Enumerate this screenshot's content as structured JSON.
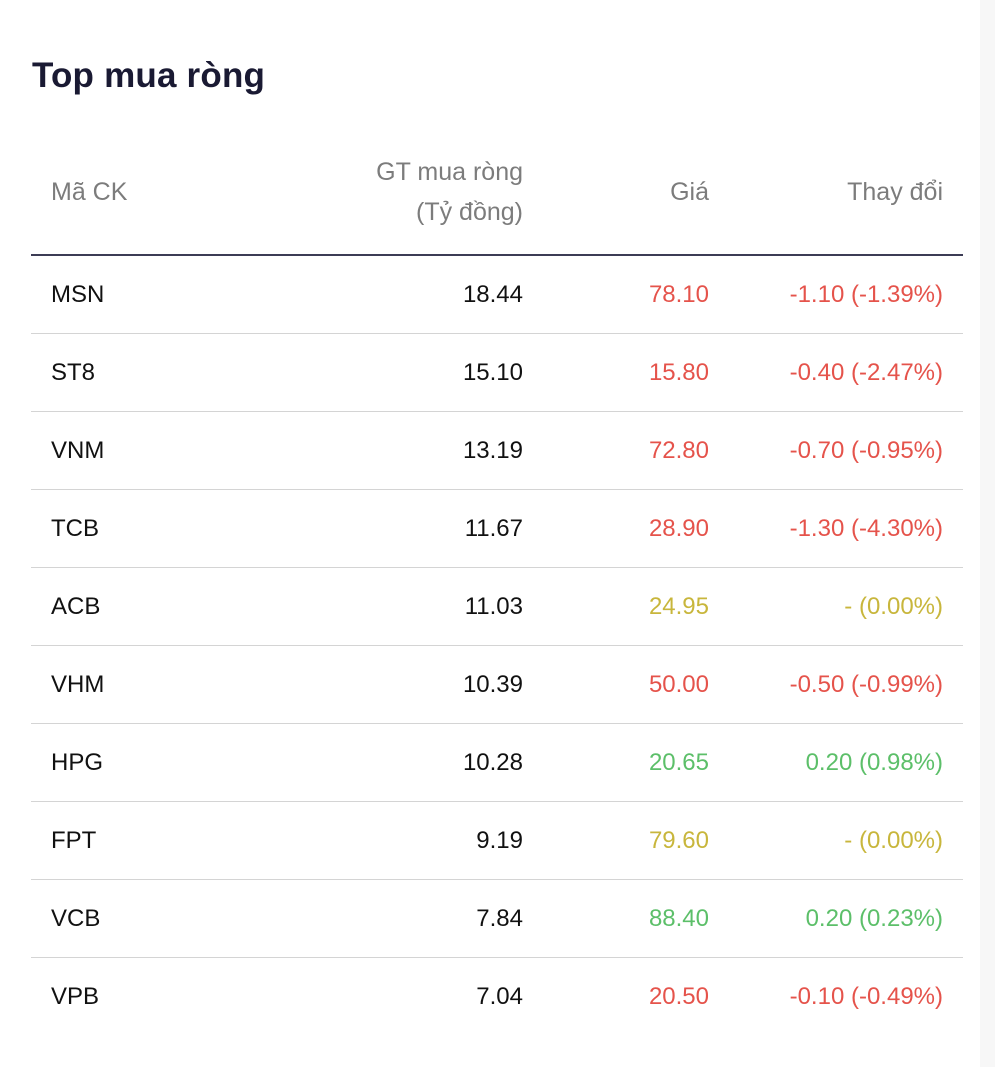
{
  "title": "Top mua ròng",
  "columns": {
    "code": "Mã CK",
    "value_line1": "GT mua ròng",
    "value_line2": "(Tỷ đồng)",
    "price": "Giá",
    "change": "Thay đổi"
  },
  "colors": {
    "down": "#e5534b",
    "reference": "#c8b63c",
    "up": "#5cbf69",
    "header_rule": "#3c3c55"
  },
  "rows": [
    {
      "code": "MSN",
      "value": "18.44",
      "price": "78.10",
      "change": "-1.10 (-1.39%)",
      "status": "down"
    },
    {
      "code": "ST8",
      "value": "15.10",
      "price": "15.80",
      "change": "-0.40 (-2.47%)",
      "status": "down"
    },
    {
      "code": "VNM",
      "value": "13.19",
      "price": "72.80",
      "change": "-0.70 (-0.95%)",
      "status": "down"
    },
    {
      "code": "TCB",
      "value": "11.67",
      "price": "28.90",
      "change": "-1.30 (-4.30%)",
      "status": "down"
    },
    {
      "code": "ACB",
      "value": "11.03",
      "price": "24.95",
      "change": "- (0.00%)",
      "status": "ref"
    },
    {
      "code": "VHM",
      "value": "10.39",
      "price": "50.00",
      "change": "-0.50 (-0.99%)",
      "status": "down"
    },
    {
      "code": "HPG",
      "value": "10.28",
      "price": "20.65",
      "change": "0.20 (0.98%)",
      "status": "up"
    },
    {
      "code": "FPT",
      "value": "9.19",
      "price": "79.60",
      "change": "- (0.00%)",
      "status": "ref"
    },
    {
      "code": "VCB",
      "value": "7.84",
      "price": "88.40",
      "change": "0.20 (0.23%)",
      "status": "up"
    },
    {
      "code": "VPB",
      "value": "7.04",
      "price": "20.50",
      "change": "-0.10 (-0.49%)",
      "status": "down"
    }
  ]
}
